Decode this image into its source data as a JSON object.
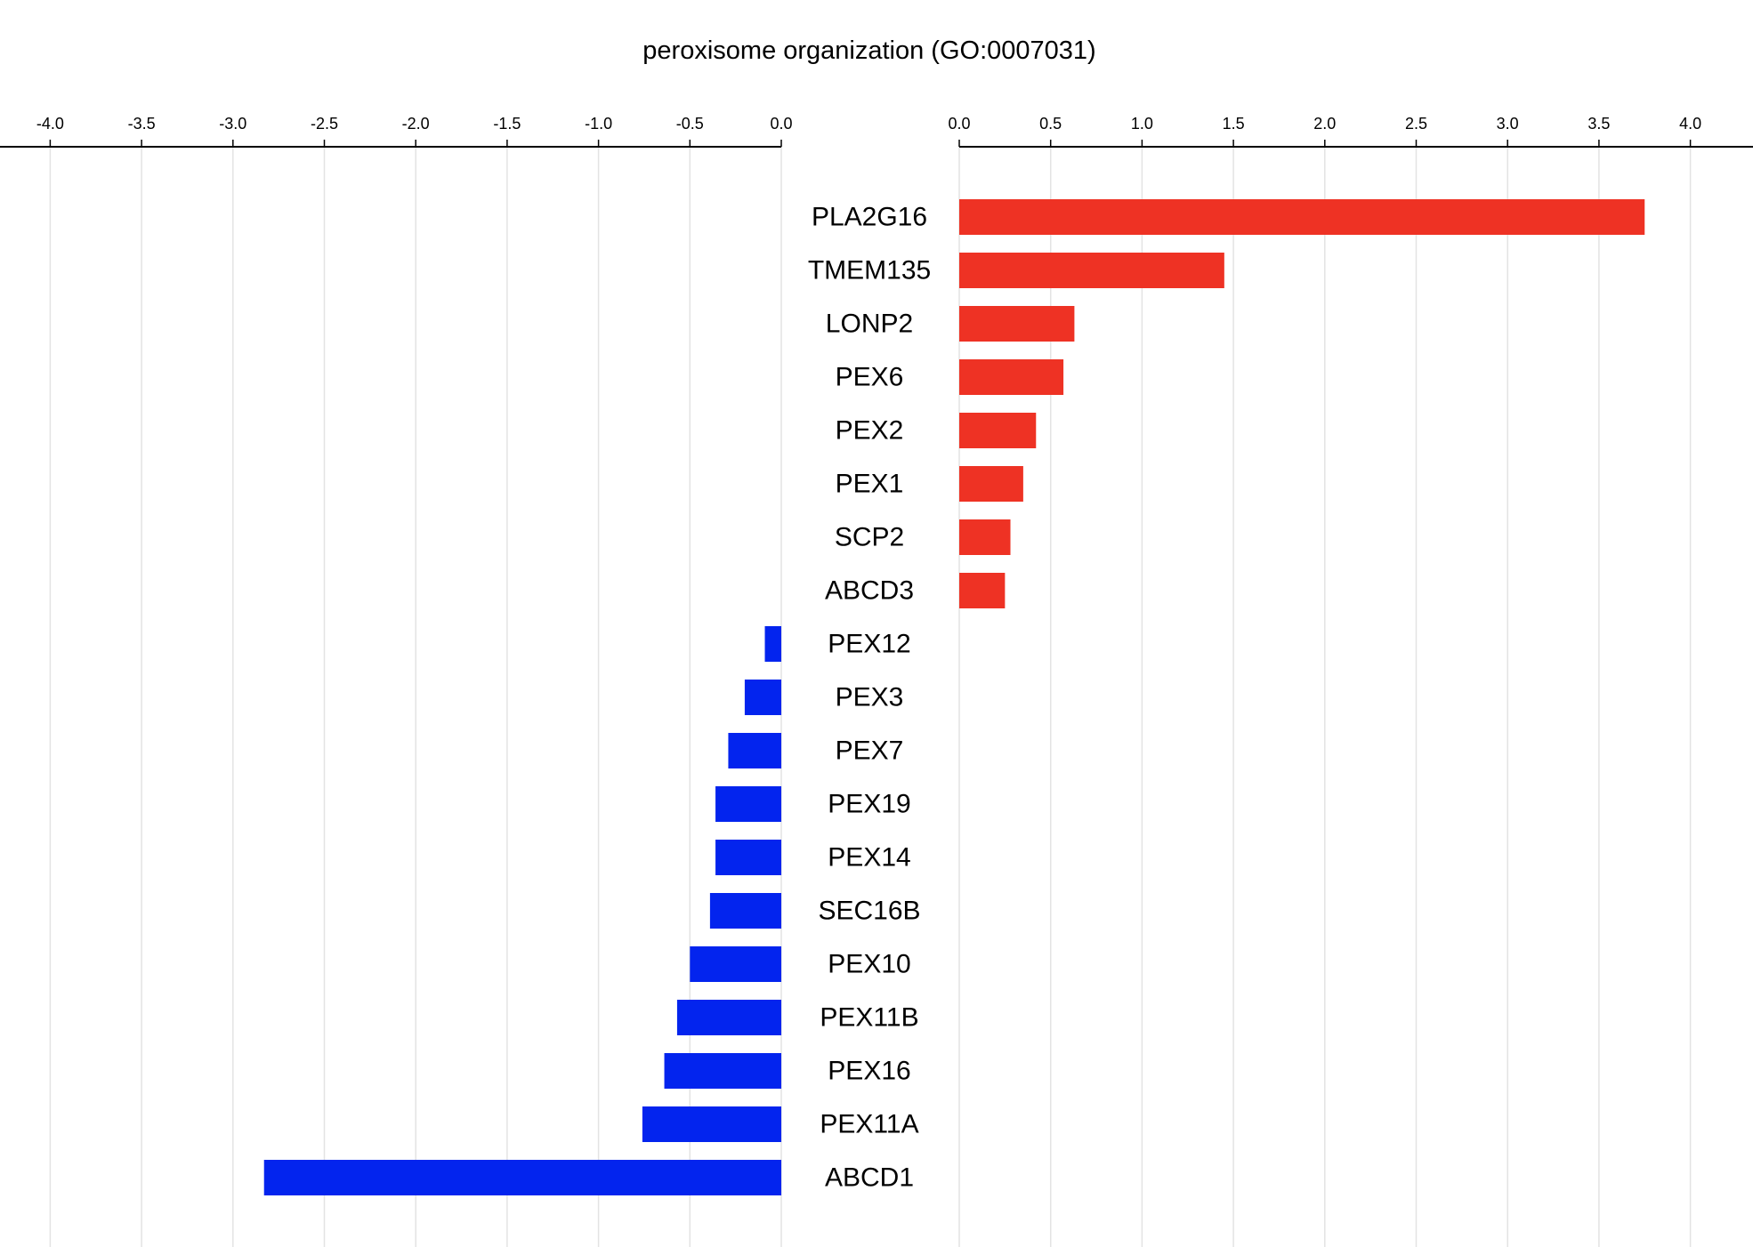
{
  "chart_data": {
    "type": "bar",
    "orientation": "horizontal",
    "title": "peroxisome organization (GO:0007031)",
    "categories": [
      "PLA2G16",
      "TMEM135",
      "LONP2",
      "PEX6",
      "PEX2",
      "PEX1",
      "SCP2",
      "ABCD3",
      "PEX12",
      "PEX3",
      "PEX7",
      "PEX19",
      "PEX14",
      "SEC16B",
      "PEX10",
      "PEX11B",
      "PEX16",
      "PEX11A",
      "ABCD1"
    ],
    "values": [
      3.75,
      1.45,
      0.63,
      0.57,
      0.42,
      0.35,
      0.28,
      0.25,
      -0.09,
      -0.2,
      -0.29,
      -0.36,
      -0.36,
      -0.39,
      -0.5,
      -0.57,
      -0.64,
      -0.76,
      -2.83
    ],
    "negative_axis": {
      "xlim": [
        -4.0,
        0.0
      ],
      "ticks": [
        "-4.0",
        "-3.5",
        "-3.0",
        "-2.5",
        "-2.0",
        "-1.5",
        "-1.0",
        "-0.5",
        "0.0"
      ]
    },
    "positive_axis": {
      "xlim": [
        0.0,
        4.0
      ],
      "ticks": [
        "0.0",
        "0.5",
        "1.0",
        "1.5",
        "2.0",
        "2.5",
        "3.0",
        "3.5",
        "4.0"
      ]
    },
    "axis_position": "top",
    "grid": true,
    "colors": {
      "positive": "#EE3224",
      "negative": "#0324EE",
      "grid": "#E3E3E3",
      "axis": "#000000"
    }
  }
}
